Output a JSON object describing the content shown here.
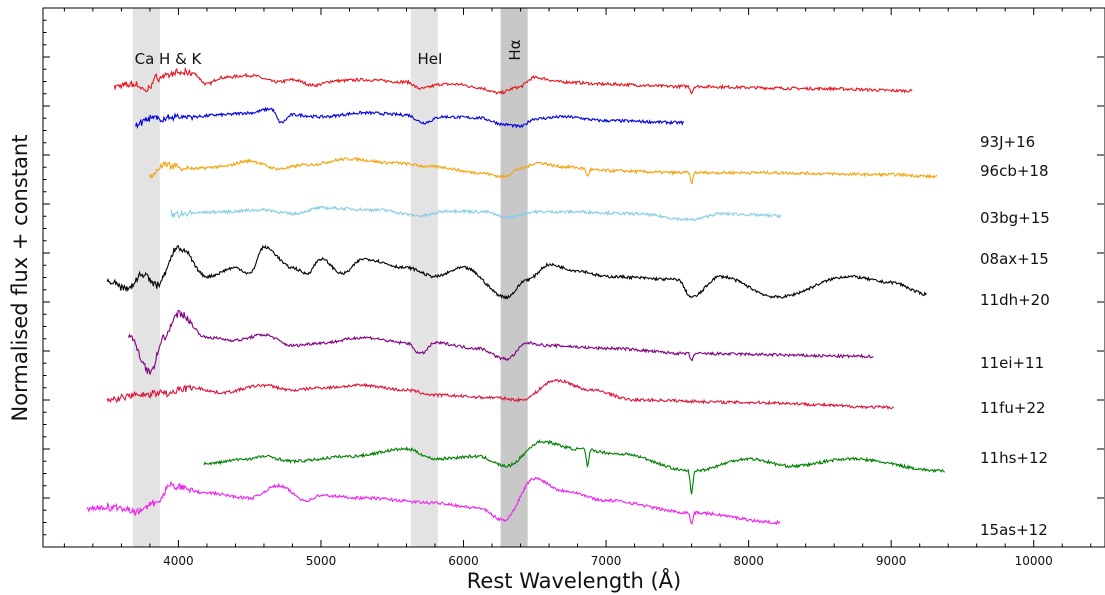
{
  "chart_data": {
    "type": "line",
    "title": "",
    "xlabel": "Rest Wavelength (Å)",
    "ylabel": "Normalised flux + constant",
    "xlim": [
      3050,
      10500
    ],
    "x_ticks": [
      4000,
      5000,
      6000,
      7000,
      8000,
      9000,
      10000
    ],
    "y_ticks": "unlabelled",
    "grid": false,
    "legend": "none",
    "bands": [
      {
        "label": "Ca H & K",
        "x0": 3680,
        "x1": 3870,
        "color": "#e3e3e3"
      },
      {
        "label": "HeI",
        "x0": 5630,
        "x1": 5820,
        "color": "#e3e3e3"
      },
      {
        "label": "Hα",
        "x0": 6260,
        "x1": 6450,
        "color": "#c8c8c8"
      }
    ],
    "series": [
      {
        "name": "93J+16",
        "color": "#e8141c",
        "x0": 3550,
        "x1": 9150,
        "offset": 9.4,
        "amp": 0.45,
        "profile": [
          [
            3550,
            0
          ],
          [
            3700,
            0.1
          ],
          [
            3770,
            -0.2
          ],
          [
            3850,
            0.4
          ],
          [
            4000,
            0.6
          ],
          [
            4100,
            0.6
          ],
          [
            4200,
            0.1
          ],
          [
            4300,
            0.4
          ],
          [
            4500,
            0.5
          ],
          [
            4700,
            0.2
          ],
          [
            4800,
            0.3
          ],
          [
            4950,
            0.05
          ],
          [
            5100,
            0.25
          ],
          [
            5300,
            0.3
          ],
          [
            5600,
            0.2
          ],
          [
            5700,
            -0.1
          ],
          [
            5850,
            0.1
          ],
          [
            5950,
            0.1
          ],
          [
            6100,
            -0.05
          ],
          [
            6250,
            -0.3
          ],
          [
            6380,
            -0.05
          ],
          [
            6500,
            0.4
          ],
          [
            6700,
            0.2
          ],
          [
            7000,
            0.1
          ],
          [
            7500,
            0
          ],
          [
            8500,
            -0.1
          ],
          [
            9150,
            -0.2
          ]
        ],
        "dips": [
          {
            "x": 7600,
            "d": -0.3
          }
        ]
      },
      {
        "name": "96cb+18",
        "color": "#0000dd",
        "x0": 3700,
        "x1": 7550,
        "offset": 8.7,
        "amp": 0.4,
        "profile": [
          [
            3700,
            -0.2
          ],
          [
            3800,
            0.1
          ],
          [
            3900,
            0.1
          ],
          [
            4000,
            0.2
          ],
          [
            4100,
            0.2
          ],
          [
            4300,
            0.3
          ],
          [
            4500,
            0.4
          ],
          [
            4650,
            0.6
          ],
          [
            4720,
            -0.1
          ],
          [
            4800,
            0.3
          ],
          [
            5000,
            0.2
          ],
          [
            5300,
            0.4
          ],
          [
            5600,
            0.3
          ],
          [
            5720,
            -0.1
          ],
          [
            5850,
            0.2
          ],
          [
            6100,
            0.15
          ],
          [
            6300,
            -0.2
          ],
          [
            6400,
            -0.3
          ],
          [
            6500,
            0.1
          ],
          [
            6700,
            0.2
          ],
          [
            7000,
            0
          ],
          [
            7550,
            -0.1
          ]
        ],
        "dips": []
      },
      {
        "name": "03bg+15",
        "color": "#f5a30f",
        "x0": 3800,
        "x1": 9320,
        "offset": 7.6,
        "amp": 0.4,
        "profile": [
          [
            3800,
            -0.1
          ],
          [
            3900,
            0.5
          ],
          [
            4100,
            0.3
          ],
          [
            4300,
            0.4
          ],
          [
            4500,
            0.7
          ],
          [
            4700,
            0.3
          ],
          [
            4900,
            0.5
          ],
          [
            5200,
            0.8
          ],
          [
            5500,
            0.6
          ],
          [
            5800,
            0.4
          ],
          [
            6100,
            0.1
          ],
          [
            6280,
            -0.1
          ],
          [
            6400,
            0.3
          ],
          [
            6520,
            0.6
          ],
          [
            6700,
            0.4
          ],
          [
            7000,
            0.2
          ],
          [
            7500,
            0.1
          ],
          [
            8000,
            0.1
          ],
          [
            9000,
            0
          ],
          [
            9320,
            -0.1
          ]
        ],
        "dips": [
          {
            "x": 6870,
            "d": -0.4
          },
          {
            "x": 7600,
            "d": -0.6
          }
        ]
      },
      {
        "name": "08ax+15",
        "color": "#87cde6",
        "x0": 3950,
        "x1": 8230,
        "offset": 6.8,
        "amp": 0.4,
        "profile": [
          [
            3950,
            0
          ],
          [
            4300,
            0.1
          ],
          [
            4600,
            0.2
          ],
          [
            4800,
            0
          ],
          [
            5000,
            0.3
          ],
          [
            5400,
            0.2
          ],
          [
            5700,
            -0.1
          ],
          [
            5900,
            0.15
          ],
          [
            6150,
            0.1
          ],
          [
            6300,
            -0.2
          ],
          [
            6500,
            0.1
          ],
          [
            6800,
            0.1
          ],
          [
            7200,
            0
          ],
          [
            7600,
            -0.3
          ],
          [
            7800,
            0
          ],
          [
            8230,
            -0.1
          ]
        ],
        "dips": []
      },
      {
        "name": "11dh+20",
        "color": "#000000",
        "x0": 3500,
        "x1": 9250,
        "offset": 5.4,
        "amp": 0.6,
        "profile": [
          [
            3500,
            0
          ],
          [
            3650,
            -0.2
          ],
          [
            3750,
            0.3
          ],
          [
            3850,
            -0.1
          ],
          [
            4000,
            1.2
          ],
          [
            4200,
            0.2
          ],
          [
            4400,
            0.5
          ],
          [
            4500,
            0.3
          ],
          [
            4600,
            1.2
          ],
          [
            4800,
            0.5
          ],
          [
            4900,
            0.3
          ],
          [
            5000,
            0.8
          ],
          [
            5150,
            0.3
          ],
          [
            5300,
            0.8
          ],
          [
            5600,
            0.5
          ],
          [
            5800,
            0.2
          ],
          [
            6000,
            0.5
          ],
          [
            6300,
            -0.5
          ],
          [
            6450,
            0.1
          ],
          [
            6600,
            0.6
          ],
          [
            6800,
            0.4
          ],
          [
            7000,
            0.2
          ],
          [
            7500,
            0.1
          ],
          [
            7600,
            -0.5
          ],
          [
            7800,
            0.2
          ],
          [
            8200,
            -0.5
          ],
          [
            8700,
            0.2
          ],
          [
            9000,
            0
          ],
          [
            9250,
            -0.4
          ]
        ],
        "dips": []
      },
      {
        "name": "11ei+11",
        "color": "#800080",
        "x0": 3650,
        "x1": 8880,
        "offset": 4.0,
        "amp": 0.55,
        "profile": [
          [
            3650,
            0.6
          ],
          [
            3800,
            -0.8
          ],
          [
            3900,
            0.5
          ],
          [
            4000,
            1.4
          ],
          [
            4200,
            0.5
          ],
          [
            4400,
            0.4
          ],
          [
            4600,
            0.6
          ],
          [
            4800,
            0.2
          ],
          [
            5000,
            0.3
          ],
          [
            5300,
            0.5
          ],
          [
            5600,
            0.3
          ],
          [
            5700,
            -0.1
          ],
          [
            5800,
            0.3
          ],
          [
            6100,
            0.1
          ],
          [
            6300,
            -0.3
          ],
          [
            6450,
            0.3
          ],
          [
            6600,
            0.2
          ],
          [
            7000,
            0.1
          ],
          [
            7600,
            -0.1
          ],
          [
            8880,
            -0.2
          ]
        ],
        "dips": [
          {
            "x": 7600,
            "d": -0.3
          }
        ]
      },
      {
        "name": "11fu+22",
        "color": "#dc143c",
        "x0": 3500,
        "x1": 9020,
        "offset": 3.0,
        "amp": 0.5,
        "profile": [
          [
            3500,
            0
          ],
          [
            3700,
            0.2
          ],
          [
            3900,
            0.3
          ],
          [
            4100,
            0.5
          ],
          [
            4300,
            0.3
          ],
          [
            4600,
            0.6
          ],
          [
            4800,
            0.4
          ],
          [
            5000,
            0.5
          ],
          [
            5300,
            0.6
          ],
          [
            5600,
            0.4
          ],
          [
            5800,
            0.2
          ],
          [
            6200,
            0.1
          ],
          [
            6400,
            0
          ],
          [
            6650,
            0.8
          ],
          [
            6900,
            0.4
          ],
          [
            7200,
            0
          ],
          [
            8000,
            -0.1
          ],
          [
            9020,
            -0.3
          ]
        ],
        "dips": []
      },
      {
        "name": "11hs+12",
        "color": "#008000",
        "x0": 4180,
        "x1": 9380,
        "offset": 1.7,
        "amp": 0.5,
        "profile": [
          [
            4180,
            0
          ],
          [
            4500,
            0.2
          ],
          [
            4600,
            0.3
          ],
          [
            4800,
            0.1
          ],
          [
            5200,
            0.3
          ],
          [
            5600,
            0.6
          ],
          [
            5800,
            0.2
          ],
          [
            6100,
            0.3
          ],
          [
            6300,
            -0.1
          ],
          [
            6550,
            0.9
          ],
          [
            6800,
            0.6
          ],
          [
            7100,
            0.4
          ],
          [
            7600,
            -0.3
          ],
          [
            8000,
            0.2
          ],
          [
            8300,
            -0.1
          ],
          [
            8700,
            0.2
          ],
          [
            9380,
            -0.3
          ]
        ],
        "dips": [
          {
            "x": 6870,
            "d": -0.8
          },
          {
            "x": 7600,
            "d": -1.0
          }
        ]
      },
      {
        "name": "15as+12",
        "color": "#ee22ee",
        "x0": 3360,
        "x1": 8220,
        "offset": 0.8,
        "amp": 0.5,
        "profile": [
          [
            3360,
            0
          ],
          [
            3600,
            0
          ],
          [
            3700,
            -0.2
          ],
          [
            3850,
            0.2
          ],
          [
            3950,
            0.9
          ],
          [
            4200,
            0.6
          ],
          [
            4500,
            0.4
          ],
          [
            4700,
            0.9
          ],
          [
            4900,
            0.3
          ],
          [
            5000,
            0.5
          ],
          [
            5300,
            0.4
          ],
          [
            5800,
            0.2
          ],
          [
            6100,
            0
          ],
          [
            6280,
            -0.5
          ],
          [
            6500,
            1.2
          ],
          [
            6700,
            0.7
          ],
          [
            7000,
            0.3
          ],
          [
            7600,
            -0.2
          ],
          [
            8220,
            -0.6
          ]
        ],
        "dips": [
          {
            "x": 7600,
            "d": -0.5
          }
        ]
      }
    ]
  }
}
